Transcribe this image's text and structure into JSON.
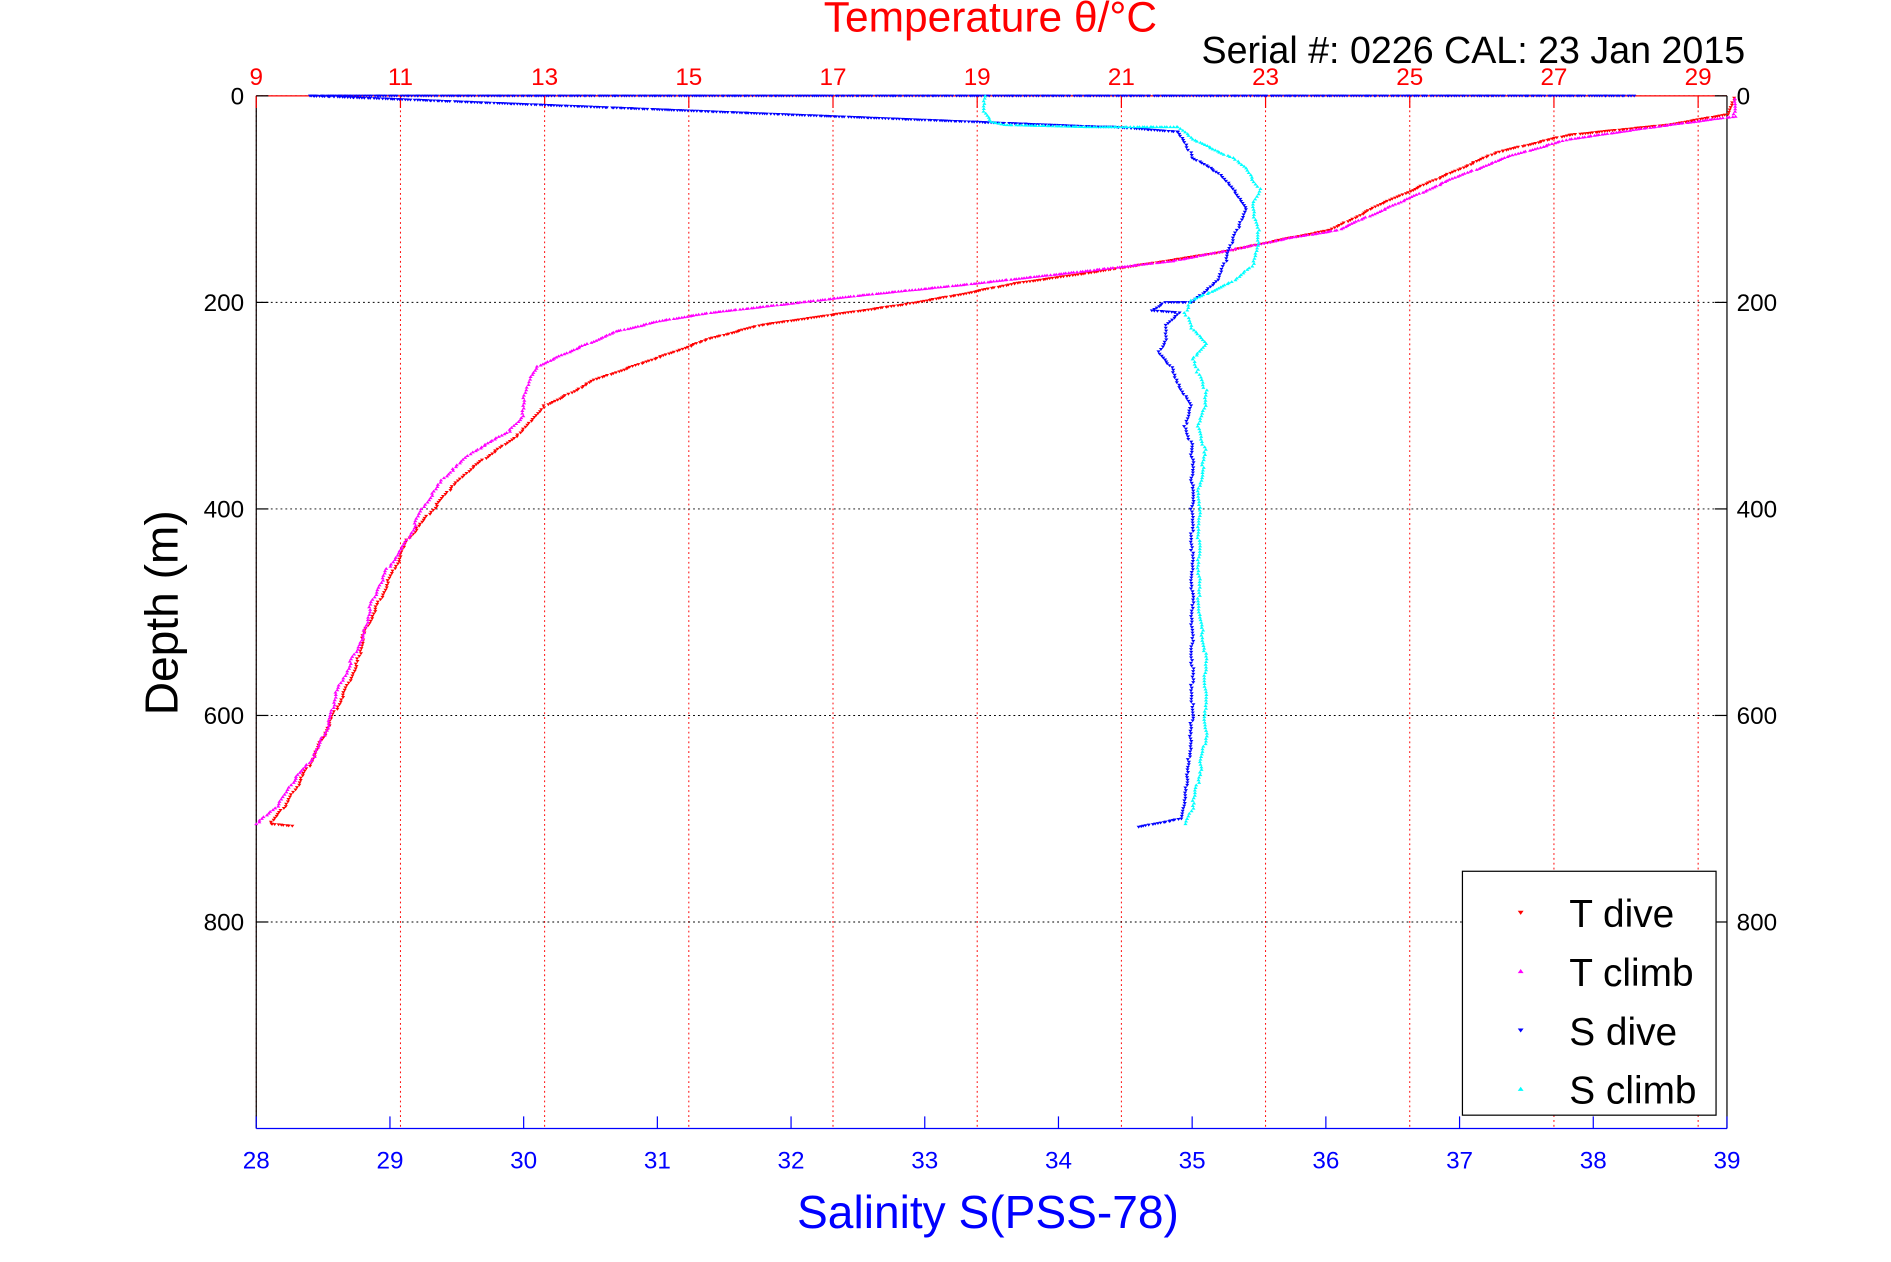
{
  "chart_data": {
    "type": "scatter",
    "title": "Temperature θ/°C",
    "subtitle": "Serial #: 0226  CAL: 23 Jan 2015",
    "xlabel": "Salinity S(PSS-78)",
    "ylabel": "Depth (m)",
    "x2label": "Temperature θ/°C",
    "xlim": [
      28,
      39
    ],
    "x2lim": [
      9,
      29.4
    ],
    "ylim": [
      0,
      1000
    ],
    "y_reversed": true,
    "x_ticks": [
      "28",
      "29",
      "30",
      "31",
      "32",
      "33",
      "34",
      "35",
      "36",
      "37",
      "38",
      "39"
    ],
    "x2_ticks": [
      "9",
      "11",
      "13",
      "15",
      "17",
      "19",
      "21",
      "23",
      "25",
      "27",
      "29"
    ],
    "y_ticks_left": [
      "0",
      "200",
      "400",
      "600",
      "800"
    ],
    "y_ticks_right": [
      "0",
      "200",
      "400",
      "600",
      "800"
    ],
    "grid": true,
    "legend_position": "bottom-right",
    "colors": {
      "temperature_axis": "#ff0000",
      "salinity_axis": "#0000ff",
      "t_dive": "#ff0000",
      "t_climb": "#ff00ff",
      "s_dive": "#0000ff",
      "s_climb": "#00ffff"
    },
    "series": [
      {
        "name": "T dive",
        "axis": "temperature",
        "marker": "triangle-down",
        "color": "#ff0000",
        "points": [
          [
            29.5,
            2
          ],
          [
            29.4,
            18
          ],
          [
            28.6,
            28
          ],
          [
            27.2,
            38
          ],
          [
            26.2,
            55
          ],
          [
            25.4,
            80
          ],
          [
            24.6,
            105
          ],
          [
            23.9,
            130
          ],
          [
            23.3,
            138
          ],
          [
            22.5,
            150
          ],
          [
            21.8,
            158
          ],
          [
            20.5,
            172
          ],
          [
            19.5,
            182
          ],
          [
            18.8,
            192
          ],
          [
            18.0,
            202
          ],
          [
            17.0,
            212
          ],
          [
            16.0,
            222
          ],
          [
            15.3,
            235
          ],
          [
            14.8,
            248
          ],
          [
            14.3,
            260
          ],
          [
            13.7,
            275
          ],
          [
            13.3,
            290
          ],
          [
            13.0,
            300
          ],
          [
            12.8,
            315
          ],
          [
            12.6,
            330
          ],
          [
            12.3,
            345
          ],
          [
            12.0,
            360
          ],
          [
            11.7,
            380
          ],
          [
            11.4,
            405
          ],
          [
            11.1,
            430
          ],
          [
            10.9,
            460
          ],
          [
            10.7,
            490
          ],
          [
            10.5,
            520
          ],
          [
            10.4,
            550
          ],
          [
            10.2,
            580
          ],
          [
            10.0,
            610
          ],
          [
            9.8,
            640
          ],
          [
            9.6,
            665
          ],
          [
            9.4,
            688
          ],
          [
            9.2,
            705
          ],
          [
            9.5,
            707
          ]
        ]
      },
      {
        "name": "T climb",
        "axis": "temperature",
        "marker": "triangle-up",
        "color": "#ff00ff",
        "points": [
          [
            29.5,
            3
          ],
          [
            29.5,
            20
          ],
          [
            28.4,
            30
          ],
          [
            27.2,
            42
          ],
          [
            26.4,
            58
          ],
          [
            25.6,
            80
          ],
          [
            24.8,
            105
          ],
          [
            24.0,
            130
          ],
          [
            23.3,
            138
          ],
          [
            22.6,
            148
          ],
          [
            21.7,
            160
          ],
          [
            20.2,
            172
          ],
          [
            18.8,
            183
          ],
          [
            17.4,
            193
          ],
          [
            16.3,
            202
          ],
          [
            15.3,
            210
          ],
          [
            14.6,
            218
          ],
          [
            14.0,
            228
          ],
          [
            13.6,
            240
          ],
          [
            13.2,
            252
          ],
          [
            12.9,
            262
          ],
          [
            12.8,
            272
          ],
          [
            12.7,
            290
          ],
          [
            12.7,
            310
          ],
          [
            12.5,
            325
          ],
          [
            12.0,
            345
          ],
          [
            11.6,
            370
          ],
          [
            11.3,
            400
          ],
          [
            11.1,
            430
          ],
          [
            10.8,
            460
          ],
          [
            10.6,
            490
          ],
          [
            10.5,
            520
          ],
          [
            10.3,
            550
          ],
          [
            10.1,
            580
          ],
          [
            10.0,
            610
          ],
          [
            9.8,
            640
          ],
          [
            9.5,
            665
          ],
          [
            9.3,
            688
          ],
          [
            9.0,
            705
          ]
        ]
      },
      {
        "name": "S dive",
        "axis": "salinity",
        "marker": "triangle-down",
        "color": "#0000ff",
        "points": [
          [
            38.3,
            0
          ],
          [
            28.4,
            0
          ],
          [
            34.3,
            30
          ],
          [
            34.4,
            30
          ],
          [
            34.9,
            35
          ],
          [
            34.95,
            45
          ],
          [
            35.0,
            60
          ],
          [
            35.2,
            75
          ],
          [
            35.3,
            90
          ],
          [
            35.35,
            100
          ],
          [
            35.4,
            110
          ],
          [
            35.35,
            125
          ],
          [
            35.3,
            140
          ],
          [
            35.25,
            160
          ],
          [
            35.2,
            178
          ],
          [
            35.1,
            190
          ],
          [
            35.0,
            200
          ],
          [
            34.8,
            200
          ],
          [
            34.7,
            208
          ],
          [
            34.9,
            210
          ],
          [
            34.8,
            222
          ],
          [
            34.8,
            236
          ],
          [
            34.75,
            250
          ],
          [
            34.85,
            263
          ],
          [
            34.9,
            280
          ],
          [
            35.0,
            300
          ],
          [
            34.95,
            320
          ],
          [
            35.0,
            340
          ],
          [
            35.0,
            370
          ],
          [
            35.0,
            400
          ],
          [
            35.0,
            440
          ],
          [
            35.0,
            480
          ],
          [
            35.0,
            520
          ],
          [
            35.0,
            560
          ],
          [
            35.0,
            600
          ],
          [
            34.98,
            640
          ],
          [
            34.96,
            670
          ],
          [
            34.94,
            690
          ],
          [
            34.92,
            700
          ],
          [
            34.6,
            708
          ]
        ]
      },
      {
        "name": "S climb",
        "axis": "salinity",
        "marker": "triangle-up",
        "color": "#00ffff",
        "points": [
          [
            33.45,
            0
          ],
          [
            33.45,
            15
          ],
          [
            33.5,
            25
          ],
          [
            33.6,
            28
          ],
          [
            34.2,
            30
          ],
          [
            34.9,
            30
          ],
          [
            35.0,
            42
          ],
          [
            35.3,
            60
          ],
          [
            35.4,
            70
          ],
          [
            35.5,
            90
          ],
          [
            35.45,
            110
          ],
          [
            35.5,
            130
          ],
          [
            35.5,
            145
          ],
          [
            35.45,
            165
          ],
          [
            35.3,
            180
          ],
          [
            35.0,
            198
          ],
          [
            34.95,
            210
          ],
          [
            35.0,
            225
          ],
          [
            35.1,
            240
          ],
          [
            35.0,
            255
          ],
          [
            35.05,
            270
          ],
          [
            35.1,
            285
          ],
          [
            35.1,
            300
          ],
          [
            35.05,
            320
          ],
          [
            35.1,
            345
          ],
          [
            35.05,
            380
          ],
          [
            35.05,
            420
          ],
          [
            35.05,
            460
          ],
          [
            35.05,
            500
          ],
          [
            35.1,
            540
          ],
          [
            35.1,
            580
          ],
          [
            35.1,
            620
          ],
          [
            35.05,
            660
          ],
          [
            35.0,
            690
          ],
          [
            34.95,
            705
          ]
        ]
      }
    ]
  }
}
